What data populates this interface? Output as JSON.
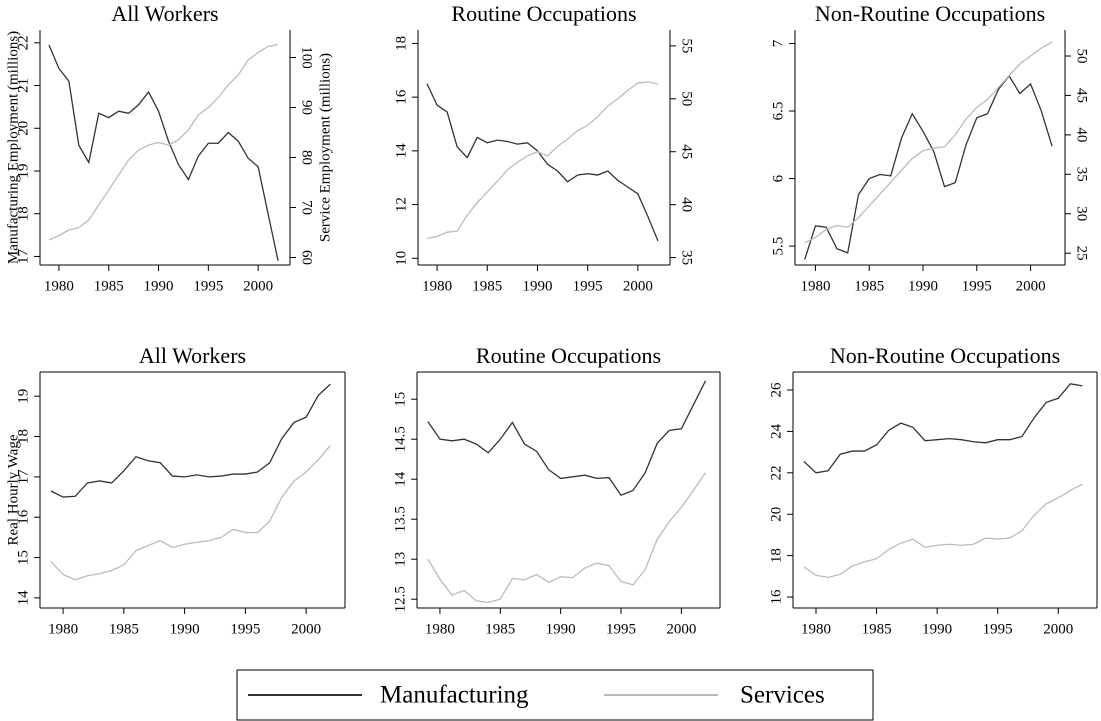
{
  "chart_data": [
    {
      "type": "line",
      "title": "All Workers",
      "x": [
        1979,
        1980,
        1981,
        1982,
        1983,
        1984,
        1985,
        1986,
        1987,
        1988,
        1989,
        1990,
        1991,
        1992,
        1993,
        1994,
        1995,
        1996,
        1997,
        1998,
        1999,
        2000,
        2001,
        2002
      ],
      "xlim": [
        1978.1,
        2003.2
      ],
      "xticks": [
        1980,
        1985,
        1990,
        1995,
        2000
      ],
      "ylim": [
        16.8,
        22.3
      ],
      "yticks": [
        17,
        18,
        19,
        20,
        21,
        22
      ],
      "y2lim": [
        58.5,
        105.5
      ],
      "y2ticks": [
        60,
        70,
        80,
        90,
        100
      ],
      "ylabel": "Manufacturing Employment (millions)",
      "y2label": "Service Employment (millions)",
      "series": [
        {
          "name": "Manufacturing",
          "color": "#333333",
          "values": [
            21.95,
            21.4,
            21.1,
            19.6,
            19.2,
            20.35,
            20.25,
            20.4,
            20.35,
            20.55,
            20.85,
            20.4,
            19.7,
            19.15,
            18.8,
            19.35,
            19.65,
            19.65,
            19.9,
            19.7,
            19.3,
            19.1,
            18.0,
            16.9
          ]
        },
        {
          "name": "Services",
          "color": "#bbbbbb",
          "axis": "y2",
          "values": [
            63.5,
            64.4,
            65.5,
            66,
            67.5,
            70.5,
            73.5,
            76.5,
            79.5,
            81.5,
            82.5,
            83,
            82.5,
            83.5,
            85.5,
            88.5,
            90,
            92,
            94.5,
            96.5,
            99.5,
            101,
            102.2,
            102.6
          ]
        }
      ]
    },
    {
      "type": "line",
      "title": "Routine Occupations",
      "x": [
        1979,
        1980,
        1981,
        1982,
        1983,
        1984,
        1985,
        1986,
        1987,
        1988,
        1989,
        1990,
        1991,
        1992,
        1993,
        1994,
        1995,
        1996,
        1997,
        1998,
        1999,
        2000,
        2001,
        2002
      ],
      "xlim": [
        1978.1,
        2003.2
      ],
      "xticks": [
        1980,
        1985,
        1990,
        1995,
        2000
      ],
      "ylim": [
        9.75,
        18.5
      ],
      "yticks": [
        10,
        12,
        14,
        16,
        18
      ],
      "y2lim": [
        34.3,
        56.5
      ],
      "y2ticks": [
        35,
        40,
        45,
        50,
        55
      ],
      "series": [
        {
          "name": "Manufacturing",
          "color": "#333333",
          "values": [
            16.5,
            15.7,
            15.45,
            14.15,
            13.75,
            14.5,
            14.3,
            14.4,
            14.35,
            14.25,
            14.3,
            14.0,
            13.5,
            13.25,
            12.85,
            13.1,
            13.15,
            13.1,
            13.25,
            12.9,
            12.65,
            12.4,
            11.55,
            10.65
          ]
        },
        {
          "name": "Services",
          "color": "#bbbbbb",
          "axis": "y2",
          "values": [
            36.8,
            37.0,
            37.4,
            37.5,
            39.0,
            40.2,
            41.2,
            42.2,
            43.3,
            44.0,
            44.6,
            45.0,
            44.6,
            45.5,
            46.2,
            47.0,
            47.5,
            48.3,
            49.3,
            50.0,
            50.8,
            51.5,
            51.6,
            51.4
          ]
        }
      ]
    },
    {
      "type": "line",
      "title": "Non-Routine Occupations",
      "x": [
        1979,
        1980,
        1981,
        1982,
        1983,
        1984,
        1985,
        1986,
        1987,
        1988,
        1989,
        1990,
        1991,
        1992,
        1993,
        1994,
        1995,
        1996,
        1997,
        1998,
        1999,
        2000,
        2001,
        2002
      ],
      "xlim": [
        1978.1,
        2003.2
      ],
      "xticks": [
        1980,
        1985,
        1990,
        1995,
        2000
      ],
      "ylim": [
        5.36,
        7.1
      ],
      "yticks": [
        5.5,
        6,
        6.5,
        7
      ],
      "y2lim": [
        23.5,
        53.3
      ],
      "y2ticks": [
        25,
        30,
        35,
        40,
        45,
        50
      ],
      "series": [
        {
          "name": "Manufacturing",
          "color": "#333333",
          "values": [
            5.4,
            5.65,
            5.64,
            5.48,
            5.45,
            5.88,
            6.0,
            6.03,
            6.02,
            6.3,
            6.48,
            6.35,
            6.2,
            5.94,
            5.97,
            6.25,
            6.45,
            6.48,
            6.66,
            6.76,
            6.63,
            6.7,
            6.5,
            6.24
          ]
        },
        {
          "name": "Services",
          "color": "#bbbbbb",
          "axis": "y2",
          "values": [
            26.3,
            27.0,
            28.0,
            28.5,
            28.3,
            29.5,
            31.0,
            32.5,
            34.0,
            35.5,
            37.0,
            38.0,
            38.3,
            38.5,
            40.0,
            42.0,
            43.5,
            44.5,
            46.0,
            47.5,
            49.0,
            50.0,
            51.0,
            51.8
          ]
        }
      ]
    },
    {
      "type": "line",
      "title": "All Workers",
      "x": [
        1979,
        1980,
        1981,
        1982,
        1983,
        1984,
        1985,
        1986,
        1987,
        1988,
        1989,
        1990,
        1991,
        1992,
        1993,
        1994,
        1995,
        1996,
        1997,
        1998,
        1999,
        2000,
        2001,
        2002
      ],
      "xlim": [
        1978.1,
        2003.2
      ],
      "xticks": [
        1980,
        1985,
        1990,
        1995,
        2000
      ],
      "ylim": [
        13.75,
        19.6
      ],
      "yticks": [
        14,
        15,
        16,
        17,
        18,
        19
      ],
      "ylabel": "Real Hourly Wage",
      "series": [
        {
          "name": "Manufacturing",
          "color": "#333333",
          "values": [
            16.65,
            16.5,
            16.52,
            16.85,
            16.9,
            16.85,
            17.15,
            17.5,
            17.4,
            17.35,
            17.02,
            17.0,
            17.05,
            17.0,
            17.02,
            17.07,
            17.07,
            17.12,
            17.35,
            17.95,
            18.35,
            18.48,
            19.02,
            19.3
          ]
        },
        {
          "name": "Services",
          "color": "#bbbbbb",
          "values": [
            14.9,
            14.58,
            14.45,
            14.55,
            14.6,
            14.68,
            14.82,
            15.17,
            15.3,
            15.42,
            15.25,
            15.33,
            15.38,
            15.42,
            15.5,
            15.7,
            15.62,
            15.62,
            15.9,
            16.5,
            16.9,
            17.12,
            17.42,
            17.78
          ]
        }
      ]
    },
    {
      "type": "line",
      "title": "Routine Occupations",
      "x": [
        1979,
        1980,
        1981,
        1982,
        1983,
        1984,
        1985,
        1986,
        1987,
        1988,
        1989,
        1990,
        1991,
        1992,
        1993,
        1994,
        1995,
        1996,
        1997,
        1998,
        1999,
        2000,
        2001,
        2002
      ],
      "xlim": [
        1978.1,
        2003.2
      ],
      "xticks": [
        1980,
        1985,
        1990,
        1995,
        2000
      ],
      "ylim": [
        12.39,
        15.34
      ],
      "yticks": [
        12.5,
        13,
        13.5,
        14,
        14.5,
        15
      ],
      "series": [
        {
          "name": "Manufacturing",
          "color": "#333333",
          "values": [
            14.72,
            14.5,
            14.48,
            14.5,
            14.44,
            14.33,
            14.5,
            14.71,
            14.44,
            14.35,
            14.12,
            14.01,
            14.03,
            14.05,
            14.01,
            14.02,
            13.8,
            13.86,
            14.08,
            14.45,
            14.61,
            14.63,
            14.93,
            15.23
          ]
        },
        {
          "name": "Services",
          "color": "#bbbbbb",
          "values": [
            13.0,
            12.75,
            12.55,
            12.61,
            12.48,
            12.46,
            12.5,
            12.76,
            12.74,
            12.81,
            12.71,
            12.78,
            12.77,
            12.89,
            12.95,
            12.92,
            12.72,
            12.68,
            12.87,
            13.25,
            13.47,
            13.65,
            13.86,
            14.08
          ]
        }
      ]
    },
    {
      "type": "line",
      "title": "Non-Routine Occupations",
      "x": [
        1979,
        1980,
        1981,
        1982,
        1983,
        1984,
        1985,
        1986,
        1987,
        1988,
        1989,
        1990,
        1991,
        1992,
        1993,
        1994,
        1995,
        1996,
        1997,
        1998,
        1999,
        2000,
        2001,
        2002
      ],
      "xlim": [
        1978.1,
        2003.2
      ],
      "xticks": [
        1980,
        1985,
        1990,
        1995,
        2000
      ],
      "ylim": [
        15.47,
        26.87
      ],
      "yticks": [
        16,
        18,
        20,
        22,
        24,
        26
      ],
      "series": [
        {
          "name": "Manufacturing",
          "color": "#333333",
          "values": [
            22.55,
            22.0,
            22.1,
            22.9,
            23.05,
            23.05,
            23.35,
            24.05,
            24.4,
            24.2,
            23.55,
            23.6,
            23.65,
            23.6,
            23.5,
            23.45,
            23.6,
            23.6,
            23.75,
            24.65,
            25.4,
            25.6,
            26.3,
            26.2
          ]
        },
        {
          "name": "Services",
          "color": "#bbbbbb",
          "values": [
            17.45,
            17.05,
            16.95,
            17.1,
            17.5,
            17.7,
            17.85,
            18.3,
            18.6,
            18.8,
            18.4,
            18.5,
            18.55,
            18.5,
            18.55,
            18.85,
            18.8,
            18.85,
            19.2,
            19.95,
            20.5,
            20.8,
            21.15,
            21.45
          ]
        }
      ]
    }
  ]
}
